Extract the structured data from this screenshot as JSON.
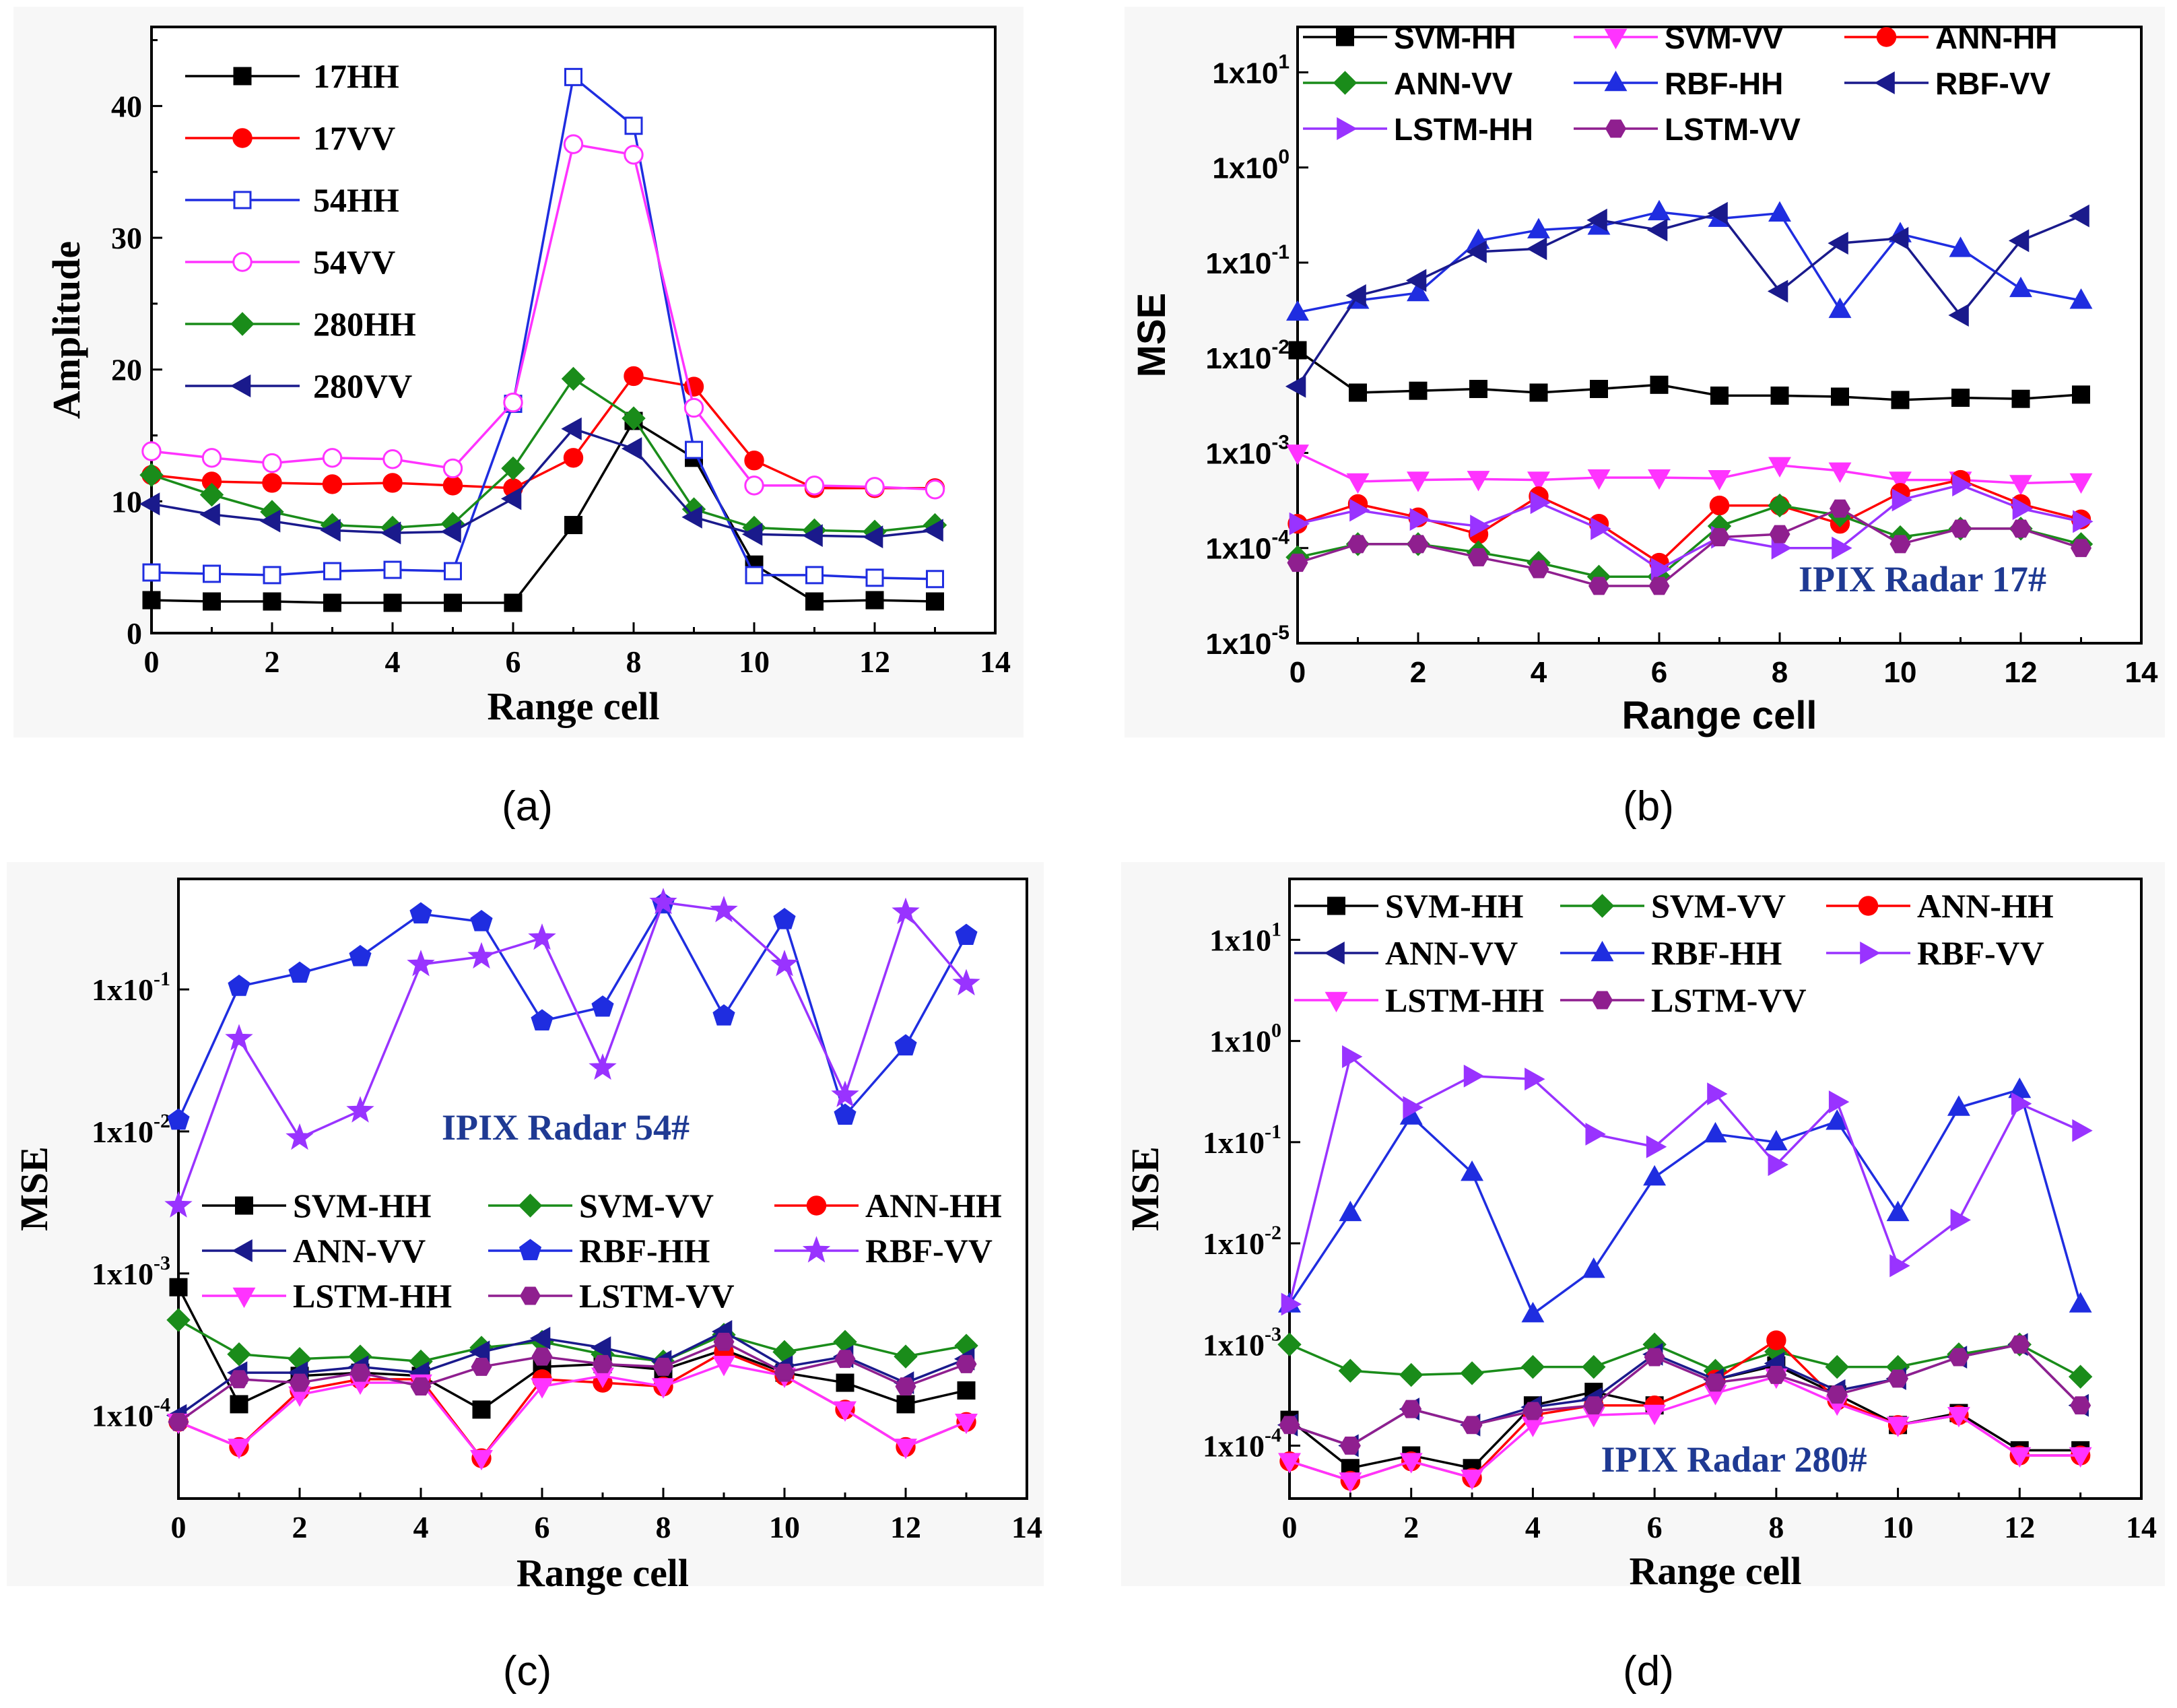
{
  "panel_labels": [
    "(a)",
    "(b)",
    "(c)",
    "(d)"
  ],
  "colors": {
    "black": "#000000",
    "red": "#ff0000",
    "blue": "#1f2de0",
    "magenta": "#ff33ff",
    "green": "#1a8c1a",
    "navy": "#1a1a8c",
    "purple": "#8f1f8f",
    "violet": "#9933ff",
    "pink": "#ff33cc"
  },
  "chart_data": [
    {
      "type": "line",
      "panel": "(a)",
      "xlabel": "Range cell",
      "ylabel": "Amplitude",
      "xlim": [
        0,
        14
      ],
      "ylim": [
        0,
        46
      ],
      "xticks": [
        0,
        2,
        4,
        6,
        8,
        10,
        12,
        14
      ],
      "yticks": [
        0,
        10,
        20,
        30,
        40
      ],
      "x": [
        0,
        1,
        2,
        3,
        4,
        5,
        6,
        7,
        8,
        9,
        10,
        11,
        12,
        13
      ],
      "series": [
        {
          "name": "17HH",
          "color": "#000000",
          "marker": "square",
          "values": [
            2.5,
            2.4,
            2.4,
            2.3,
            2.3,
            2.3,
            2.3,
            8.2,
            16.1,
            13.3,
            5.2,
            2.4,
            2.5,
            2.4
          ]
        },
        {
          "name": "17VV",
          "color": "#ff0000",
          "marker": "circle",
          "values": [
            12.0,
            11.5,
            11.4,
            11.3,
            11.4,
            11.2,
            11.0,
            13.3,
            19.5,
            18.7,
            13.1,
            11.0,
            11.0,
            11.0
          ]
        },
        {
          "name": "54HH",
          "color": "#1f2de0",
          "marker": "square-open",
          "values": [
            4.6,
            4.5,
            4.4,
            4.7,
            4.8,
            4.7,
            17.4,
            42.2,
            38.5,
            13.9,
            4.4,
            4.4,
            4.2,
            4.1
          ]
        },
        {
          "name": "54VV",
          "color": "#ff33ff",
          "marker": "circle-open",
          "values": [
            13.8,
            13.3,
            12.9,
            13.3,
            13.2,
            12.5,
            17.5,
            37.1,
            36.3,
            17.1,
            11.2,
            11.2,
            11.1,
            10.9
          ]
        },
        {
          "name": "280HH",
          "color": "#1a8c1a",
          "marker": "diamond",
          "values": [
            12.0,
            10.5,
            9.2,
            8.2,
            8.0,
            8.3,
            12.5,
            19.3,
            16.3,
            9.4,
            8.0,
            7.8,
            7.7,
            8.2
          ]
        },
        {
          "name": "280VV",
          "color": "#1a1a8c",
          "marker": "triangle-left",
          "values": [
            9.8,
            9.0,
            8.5,
            7.8,
            7.6,
            7.7,
            10.2,
            15.5,
            14.0,
            8.8,
            7.5,
            7.4,
            7.3,
            7.8
          ]
        }
      ],
      "legend_position": "top-left"
    },
    {
      "type": "line",
      "panel": "(b)",
      "xlabel": "Range cell",
      "ylabel": "MSE",
      "yscale": "log",
      "xlim": [
        0,
        14
      ],
      "ylim": [
        1e-05,
        30
      ],
      "xticks": [
        0,
        2,
        4,
        6,
        8,
        10,
        12,
        14
      ],
      "yticks": [
        1e-05,
        0.0001,
        0.001,
        0.01,
        0.1,
        1,
        10
      ],
      "ytick_labels": [
        "1x10-5",
        "1x10-4",
        "1x10-3",
        "1x10-2",
        "1x10-1",
        "1x100",
        "1x101"
      ],
      "x": [
        0,
        1,
        2,
        3,
        4,
        5,
        6,
        7,
        8,
        9,
        10,
        11,
        12,
        13
      ],
      "annotation": "IPIX Radar 17#",
      "series": [
        {
          "name": "SVM-HH",
          "color": "#000000",
          "marker": "square",
          "values": [
            0.012,
            0.0043,
            0.0045,
            0.0047,
            0.0043,
            0.0047,
            0.0052,
            0.004,
            0.004,
            0.0039,
            0.0036,
            0.0038,
            0.0037,
            0.0041
          ]
        },
        {
          "name": "SVM-VV",
          "color": "#ff33ff",
          "marker": "triangle-down",
          "values": [
            0.001,
            0.0005,
            0.00052,
            0.00053,
            0.00052,
            0.00055,
            0.00055,
            0.00054,
            0.00074,
            0.00065,
            0.00052,
            0.00052,
            0.00048,
            0.0005
          ]
        },
        {
          "name": "ANN-HH",
          "color": "#ff0000",
          "marker": "circle",
          "values": [
            0.00018,
            0.00029,
            0.00021,
            0.00014,
            0.00035,
            0.00018,
            7e-05,
            0.00028,
            0.00028,
            0.00018,
            0.00038,
            0.00052,
            0.00029,
            0.0002
          ]
        },
        {
          "name": "ANN-VV",
          "color": "#1a8c1a",
          "marker": "diamond",
          "values": [
            8e-05,
            0.00011,
            0.00011,
            9e-05,
            7e-05,
            5e-05,
            5e-05,
            0.00017,
            0.00028,
            0.00022,
            0.00013,
            0.00016,
            0.00016,
            0.00011
          ]
        },
        {
          "name": "RBF-HH",
          "color": "#1f2de0",
          "marker": "triangle-up",
          "values": [
            0.03,
            0.04,
            0.048,
            0.17,
            0.22,
            0.24,
            0.34,
            0.29,
            0.33,
            0.032,
            0.2,
            0.14,
            0.053,
            0.04
          ]
        },
        {
          "name": "RBF-VV",
          "color": "#1a1a8c",
          "marker": "triangle-left",
          "values": [
            0.005,
            0.045,
            0.065,
            0.13,
            0.14,
            0.28,
            0.22,
            0.33,
            0.05,
            0.16,
            0.18,
            0.028,
            0.17,
            0.31
          ]
        },
        {
          "name": "LSTM-HH",
          "color": "#9933ff",
          "marker": "triangle-right",
          "values": [
            0.00018,
            0.00025,
            0.0002,
            0.00017,
            0.0003,
            0.00016,
            6e-05,
            0.00013,
            0.0001,
            0.0001,
            0.00032,
            0.00046,
            0.00026,
            0.00019
          ]
        },
        {
          "name": "LSTM-VV",
          "color": "#8f1f8f",
          "marker": "hexagon",
          "values": [
            7e-05,
            0.00011,
            0.00011,
            8e-05,
            6e-05,
            4e-05,
            4e-05,
            0.00013,
            0.00014,
            0.00026,
            0.00011,
            0.00016,
            0.00016,
            0.0001
          ]
        }
      ],
      "legend_position": "top"
    },
    {
      "type": "line",
      "panel": "(c)",
      "xlabel": "Range cell",
      "ylabel": "MSE",
      "yscale": "log",
      "xlim": [
        0,
        14
      ],
      "ylim": [
        2.6e-05,
        0.6
      ],
      "xticks": [
        0,
        2,
        4,
        6,
        8,
        10,
        12,
        14
      ],
      "yticks": [
        0.0001,
        0.001,
        0.01,
        0.1
      ],
      "ytick_labels": [
        "1x10-4",
        "1x10-3",
        "1x10-2",
        "1x10-1"
      ],
      "x": [
        0,
        1,
        2,
        3,
        4,
        5,
        6,
        7,
        8,
        9,
        10,
        11,
        12,
        13
      ],
      "annotation": "IPIX Radar 54#",
      "series": [
        {
          "name": "SVM-HH",
          "color": "#000000",
          "marker": "square",
          "values": [
            0.0008,
            0.00012,
            0.00019,
            0.0002,
            0.00019,
            0.00011,
            0.00022,
            0.00023,
            0.00021,
            0.00029,
            0.0002,
            0.00017,
            0.00012,
            0.00015
          ]
        },
        {
          "name": "SVM-VV",
          "color": "#1a8c1a",
          "marker": "diamond",
          "values": [
            0.00047,
            0.00027,
            0.00025,
            0.00026,
            0.00024,
            0.0003,
            0.00033,
            0.00027,
            0.00024,
            0.00037,
            0.00028,
            0.00033,
            0.00026,
            0.00031
          ]
        },
        {
          "name": "ANN-HH",
          "color": "#ff0000",
          "marker": "circle",
          "values": [
            9e-05,
            6e-05,
            0.00015,
            0.00018,
            0.00018,
            5e-05,
            0.00018,
            0.00017,
            0.00016,
            0.00028,
            0.00019,
            0.00011,
            6e-05,
            9e-05
          ]
        },
        {
          "name": "ANN-VV",
          "color": "#1a1a8c",
          "marker": "triangle-left",
          "values": [
            0.0001,
            0.0002,
            0.0002,
            0.00022,
            0.0002,
            0.00028,
            0.00035,
            0.0003,
            0.00024,
            0.00039,
            0.00022,
            0.00026,
            0.00017,
            0.00025
          ]
        },
        {
          "name": "RBF-HH",
          "color": "#1f2de0",
          "marker": "pentagon",
          "values": [
            0.012,
            0.105,
            0.13,
            0.17,
            0.34,
            0.3,
            0.06,
            0.075,
            0.4,
            0.065,
            0.31,
            0.013,
            0.04,
            0.24
          ]
        },
        {
          "name": "RBF-VV",
          "color": "#9933ff",
          "marker": "star",
          "values": [
            0.003,
            0.045,
            0.009,
            0.014,
            0.15,
            0.17,
            0.23,
            0.028,
            0.41,
            0.36,
            0.15,
            0.018,
            0.35,
            0.11
          ]
        },
        {
          "name": "LSTM-HH",
          "color": "#ff33ff",
          "marker": "triangle-down",
          "values": [
            9e-05,
            6e-05,
            0.00014,
            0.00017,
            0.00017,
            5e-05,
            0.00016,
            0.00019,
            0.00016,
            0.00023,
            0.00019,
            0.00011,
            6e-05,
            9e-05
          ]
        },
        {
          "name": "LSTM-VV",
          "color": "#8f1f8f",
          "marker": "hexagon",
          "values": [
            9e-05,
            0.00018,
            0.00017,
            0.0002,
            0.00016,
            0.00022,
            0.00026,
            0.00023,
            0.00022,
            0.00033,
            0.0002,
            0.00025,
            0.00016,
            0.00023
          ]
        }
      ],
      "legend_position": "bottom-middle"
    },
    {
      "type": "line",
      "panel": "(d)",
      "xlabel": "Range cell",
      "ylabel": "MSE",
      "yscale": "log",
      "xlim": [
        0,
        14
      ],
      "ylim": [
        3e-05,
        40
      ],
      "xticks": [
        0,
        2,
        4,
        6,
        8,
        10,
        12,
        14
      ],
      "yticks": [
        0.0001,
        0.001,
        0.01,
        0.1,
        1,
        10
      ],
      "ytick_labels": [
        "1x10-4",
        "1x10-3",
        "1x10-2",
        "1x10-1",
        "1x100",
        "1x101"
      ],
      "x": [
        0,
        1,
        2,
        3,
        4,
        5,
        6,
        7,
        8,
        9,
        10,
        11,
        12,
        13
      ],
      "annotation": "IPIX Radar 280#",
      "series": [
        {
          "name": "SVM-HH",
          "color": "#000000",
          "marker": "square",
          "values": [
            0.00018,
            6e-05,
            8e-05,
            6e-05,
            0.00025,
            0.00034,
            0.00025,
            0.00045,
            0.00062,
            0.00032,
            0.00016,
            0.00021,
            9e-05,
            9e-05
          ]
        },
        {
          "name": "SVM-VV",
          "color": "#1a8c1a",
          "marker": "diamond",
          "values": [
            0.001,
            0.00055,
            0.0005,
            0.00052,
            0.0006,
            0.0006,
            0.001,
            0.00055,
            0.00085,
            0.0006,
            0.0006,
            0.0008,
            0.001,
            0.00048
          ]
        },
        {
          "name": "ANN-HH",
          "color": "#ff0000",
          "marker": "circle",
          "values": [
            7e-05,
            4.5e-05,
            7e-05,
            4.8e-05,
            0.0002,
            0.00025,
            0.00025,
            0.00045,
            0.0011,
            0.00028,
            0.00016,
            0.0002,
            8e-05,
            8e-05
          ]
        },
        {
          "name": "ANN-VV",
          "color": "#1a1a8c",
          "marker": "triangle-left",
          "values": [
            0.00016,
            0.0001,
            0.00023,
            0.00016,
            0.00024,
            0.00029,
            0.0008,
            0.00045,
            0.00065,
            0.00035,
            0.00046,
            0.00075,
            0.001,
            0.00025
          ]
        },
        {
          "name": "RBF-HH",
          "color": "#1f2de0",
          "marker": "triangle-up",
          "values": [
            0.0025,
            0.02,
            0.18,
            0.05,
            0.002,
            0.0055,
            0.045,
            0.12,
            0.1,
            0.16,
            0.02,
            0.22,
            0.33,
            0.0025
          ]
        },
        {
          "name": "RBF-VV",
          "color": "#9933ff",
          "marker": "triangle-right",
          "values": [
            0.0025,
            0.7,
            0.22,
            0.45,
            0.42,
            0.12,
            0.09,
            0.3,
            0.06,
            0.25,
            0.006,
            0.017,
            0.24,
            0.13
          ]
        },
        {
          "name": "LSTM-HH",
          "color": "#ff33ff",
          "marker": "triangle-down",
          "values": [
            7e-05,
            4.5e-05,
            7e-05,
            4.8e-05,
            0.00016,
            0.0002,
            0.00021,
            0.00033,
            0.00048,
            0.00026,
            0.00016,
            0.0002,
            8e-05,
            8e-05
          ]
        },
        {
          "name": "LSTM-VV",
          "color": "#8f1f8f",
          "marker": "hexagon",
          "values": [
            0.00016,
            0.0001,
            0.00023,
            0.00016,
            0.00022,
            0.00025,
            0.00075,
            0.00042,
            0.0005,
            0.00032,
            0.00046,
            0.00075,
            0.001,
            0.00025
          ]
        }
      ],
      "legend_position": "top"
    }
  ]
}
